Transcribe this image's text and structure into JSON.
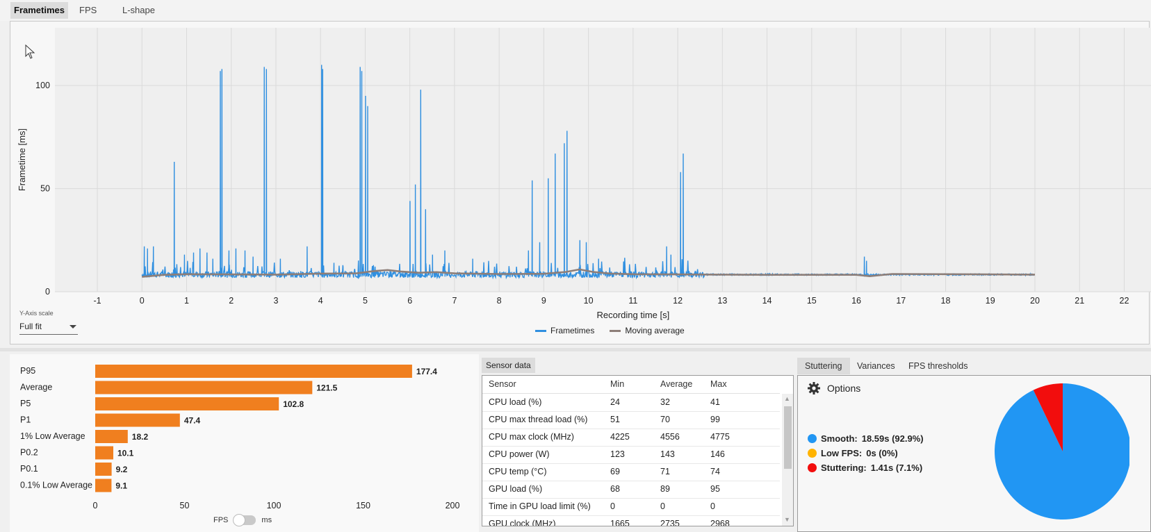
{
  "tabs": [
    "Frametimes",
    "FPS",
    "L-shape"
  ],
  "y_axis_scale": {
    "label": "Y-Axis scale",
    "value": "Full fit"
  },
  "chart_data": {
    "type": "line",
    "xlabel": "Recording time [s]",
    "ylabel": "Frametime [ms]",
    "xlim": [
      -1.95,
      22.6
    ],
    "ylim": [
      0,
      128
    ],
    "x_ticks": [
      -1,
      0,
      1,
      2,
      3,
      4,
      5,
      6,
      7,
      8,
      9,
      10,
      11,
      12,
      13,
      14,
      15,
      16,
      17,
      18,
      19,
      20,
      21,
      22
    ],
    "y_ticks": [
      0,
      50,
      100
    ],
    "series": [
      {
        "name": "Frametimes",
        "color": "#2f8fe0",
        "baseline": 8.3,
        "end_x": 20,
        "spikes": [
          [
            0.05,
            22
          ],
          [
            0.12,
            21
          ],
          [
            0.25,
            22
          ],
          [
            0.72,
            63
          ],
          [
            0.95,
            18
          ],
          [
            1.15,
            19
          ],
          [
            1.3,
            21
          ],
          [
            1.45,
            19
          ],
          [
            1.58,
            16
          ],
          [
            1.75,
            107
          ],
          [
            1.79,
            108
          ],
          [
            1.95,
            20
          ],
          [
            2.1,
            21
          ],
          [
            2.3,
            20
          ],
          [
            2.48,
            17
          ],
          [
            2.74,
            109
          ],
          [
            2.78,
            108
          ],
          [
            3.1,
            16
          ],
          [
            3.55,
            10
          ],
          [
            3.7,
            22
          ],
          [
            4.02,
            110
          ],
          [
            4.05,
            108
          ],
          [
            4.3,
            14
          ],
          [
            4.5,
            12
          ],
          [
            4.88,
            109
          ],
          [
            4.92,
            107
          ],
          [
            5.0,
            95
          ],
          [
            5.05,
            90
          ],
          [
            6.0,
            44
          ],
          [
            6.12,
            52
          ],
          [
            6.24,
            98
          ],
          [
            6.35,
            40
          ],
          [
            6.5,
            18
          ],
          [
            6.78,
            20
          ],
          [
            7.4,
            16
          ],
          [
            8.65,
            20
          ],
          [
            8.73,
            54
          ],
          [
            8.9,
            24
          ],
          [
            9.1,
            55
          ],
          [
            9.25,
            67
          ],
          [
            9.45,
            72
          ],
          [
            9.52,
            78
          ],
          [
            9.8,
            25
          ],
          [
            9.95,
            24
          ],
          [
            10.22,
            16
          ],
          [
            11.75,
            22
          ],
          [
            11.85,
            18
          ],
          [
            12.06,
            58
          ],
          [
            12.12,
            67
          ],
          [
            12.25,
            10
          ],
          [
            12.4,
            10
          ],
          [
            16.18,
            17
          ],
          [
            16.22,
            15
          ]
        ]
      },
      {
        "name": "Moving average",
        "color": "#8d7e78",
        "points": [
          [
            0,
            7.2
          ],
          [
            0.5,
            8.2
          ],
          [
            1,
            8.5
          ],
          [
            2,
            8.4
          ],
          [
            3,
            8.3
          ],
          [
            4,
            8.8
          ],
          [
            4.8,
            8.9
          ],
          [
            5.2,
            10
          ],
          [
            5.5,
            10.5
          ],
          [
            5.8,
            9.8
          ],
          [
            6.2,
            9.2
          ],
          [
            6.6,
            9.5
          ],
          [
            7,
            8.9
          ],
          [
            8,
            8.6
          ],
          [
            9,
            8.7
          ],
          [
            9.5,
            9.6
          ],
          [
            9.8,
            10.8
          ],
          [
            10.1,
            9.6
          ],
          [
            10.5,
            8.8
          ],
          [
            11,
            8.5
          ],
          [
            12,
            8.4
          ],
          [
            13,
            8.3
          ],
          [
            14,
            8.2
          ],
          [
            15,
            8.2
          ],
          [
            16,
            8.2
          ],
          [
            16.3,
            7.5
          ],
          [
            16.8,
            8.6
          ],
          [
            18,
            8.5
          ],
          [
            19,
            8.4
          ],
          [
            20,
            8.3
          ]
        ]
      }
    ],
    "legend": [
      "Frametimes",
      "Moving average"
    ],
    "legend_position": "bottom-center",
    "grid": true
  },
  "fps_bars": {
    "chart_data": {
      "type": "bar",
      "orientation": "horizontal",
      "categories": [
        "P95",
        "Average",
        "P5",
        "P1",
        "1% Low Average",
        "P0.2",
        "P0.1",
        "0.1% Low Average"
      ],
      "values": [
        177.4,
        121.5,
        102.8,
        47.4,
        18.2,
        10.1,
        9.2,
        9.1
      ],
      "value_labels": [
        "177.4",
        "121.5",
        "102.8",
        "47.4",
        "18.2",
        "10.1",
        "9.2",
        "9.1"
      ],
      "xlim": [
        0,
        200
      ],
      "x_ticks": [
        0,
        50,
        100,
        150,
        200
      ],
      "color": "#f07f1f"
    },
    "toggle_left": "FPS",
    "toggle_right": "ms"
  },
  "sensor": {
    "tab": "Sensor data",
    "headers": [
      "Sensor",
      "Min",
      "Average",
      "Max"
    ],
    "rows": [
      [
        "CPU load (%)",
        "24",
        "32",
        "41"
      ],
      [
        "CPU max thread load (%)",
        "51",
        "70",
        "99"
      ],
      [
        "CPU max clock (MHz)",
        "4225",
        "4556",
        "4775"
      ],
      [
        "CPU power (W)",
        "123",
        "143",
        "146"
      ],
      [
        "CPU temp (°C)",
        "69",
        "71",
        "74"
      ],
      [
        "GPU load (%)",
        "68",
        "89",
        "95"
      ],
      [
        "Time in GPU load limit (%)",
        "0",
        "0",
        "0"
      ],
      [
        "GPU clock (MHz)",
        "1665",
        "2735",
        "2968"
      ]
    ]
  },
  "stutter": {
    "tabs": [
      "Stuttering",
      "Variances",
      "FPS thresholds"
    ],
    "options_label": "Options",
    "legend": [
      {
        "label": "Smooth:",
        "value": "18.59s (92.9%)",
        "color": "#2196f3"
      },
      {
        "label": "Low FPS:",
        "value": "0s (0%)",
        "color": "#ffb300"
      },
      {
        "label": "Stuttering:",
        "value": "1.41s (7.1%)",
        "color": "#f20d0d"
      }
    ],
    "chart_data": {
      "type": "pie",
      "labels": [
        "Smooth",
        "Low FPS",
        "Stuttering"
      ],
      "values": [
        92.9,
        0,
        7.1
      ],
      "colors": [
        "#2196f3",
        "#ffb300",
        "#f20d0d"
      ]
    }
  }
}
